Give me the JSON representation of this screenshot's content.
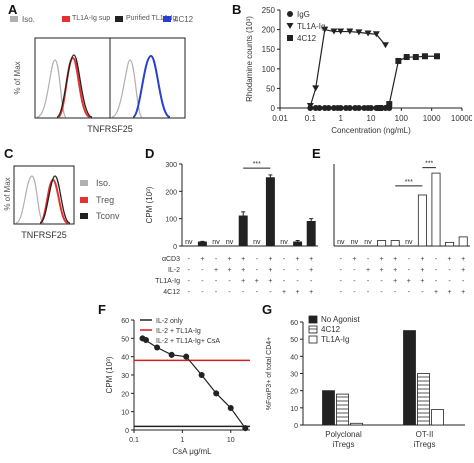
{
  "panels": {
    "A": {
      "label": "A",
      "legend": [
        "Iso.",
        "TL1A-Ig sup",
        "Purified TL1A-Ig",
        "4C12"
      ],
      "ylabel": "% of Max",
      "xlabel": "TNFRSF25",
      "colors": {
        "iso": "#b0b0b0",
        "tl1a_sup": "#e53030",
        "purified": "#222222",
        "c12": "#2a3fcf"
      }
    },
    "B": {
      "label": "B",
      "ylabel": "Rhodamine counts (10³)",
      "xlabel": "Concentration (ng/mL)"
    },
    "C": {
      "label": "C",
      "legend": [
        "Iso.",
        "Treg",
        "Tconv"
      ],
      "ylabel": "% of Max",
      "xlabel": "TNFRSF25",
      "colors": {
        "iso": "#b0b0b0",
        "treg": "#e53030",
        "tconv": "#222222"
      }
    },
    "D": {
      "label": "D",
      "ylabel": "CPM (10³)",
      "nv": "nv",
      "sig": "***",
      "treat_labels": [
        "αCD3",
        "IL-2",
        "TL1A-Ig",
        "4C12"
      ]
    },
    "E": {
      "label": "E",
      "nv": "nv",
      "sig": "***",
      "sig2": "***"
    },
    "F": {
      "label": "F",
      "ylabel": "CPM (10³)",
      "xlabel": "CsA μg/mL"
    },
    "G": {
      "label": "G",
      "ylabel": "%FoxP3+ of total CD4+",
      "groups": [
        "Polyclonal\niTregs",
        "OT-II\niTregs"
      ]
    }
  },
  "chart_data": [
    {
      "panel": "B",
      "type": "scatter",
      "xlabel": "Concentration (ng/mL)",
      "ylabel": "Rhodamine counts (10³)",
      "xlog": true,
      "xlim": [
        0.01,
        10000
      ],
      "ylim": [
        0,
        250
      ],
      "xticks": [
        "0.01",
        "0.1",
        "1",
        "10",
        "100",
        "1000",
        "10000"
      ],
      "yticks": [
        "0",
        "50",
        "100",
        "150",
        "200",
        "250"
      ],
      "series": [
        {
          "name": "IgG",
          "marker": "circle",
          "x": [
            0.1,
            0.15,
            0.2,
            0.3,
            0.4,
            0.6,
            0.8,
            1,
            1.5,
            2,
            3,
            4,
            6,
            8,
            10,
            15,
            20,
            30,
            40
          ],
          "y": [
            0,
            0,
            0,
            0,
            0,
            0,
            0,
            0,
            0,
            0,
            0,
            0,
            0,
            0,
            0,
            0,
            0,
            0,
            0
          ]
        },
        {
          "name": "TL1A-Ig",
          "marker": "triangle",
          "x": [
            0.1,
            0.15,
            0.3,
            0.6,
            1,
            2,
            4,
            8,
            15,
            30
          ],
          "y": [
            5,
            50,
            200,
            195,
            195,
            195,
            193,
            190,
            188,
            160
          ]
        },
        {
          "name": "4C12",
          "marker": "square",
          "x": [
            20,
            40,
            80,
            150,
            300,
            600,
            1500
          ],
          "y": [
            0,
            10,
            120,
            130,
            130,
            132,
            132
          ]
        }
      ]
    },
    {
      "panel": "D",
      "type": "bar",
      "ylabel": "CPM (10³)",
      "ylim": [
        0,
        300
      ],
      "yticks": [
        "0",
        "100",
        "200",
        "300"
      ],
      "values": [
        0,
        15,
        0,
        0,
        110,
        0,
        250,
        0,
        15,
        90
      ],
      "errors": [
        0,
        2,
        0,
        0,
        15,
        0,
        10,
        0,
        5,
        10
      ],
      "nv": [
        true,
        false,
        true,
        true,
        false,
        true,
        false,
        true,
        false,
        false
      ],
      "treatments": {
        "aCD3": [
          "-",
          "+",
          "-",
          "+",
          "+",
          "-",
          "+",
          "-",
          "+",
          "+"
        ],
        "IL-2": [
          "-",
          "-",
          "+",
          "+",
          "+",
          "-",
          "+",
          "-",
          "-",
          "+"
        ],
        "TL1A-Ig": [
          "-",
          "-",
          "-",
          "-",
          "+",
          "+",
          "+",
          "-",
          "-",
          "-"
        ],
        "4C12": [
          "-",
          "-",
          "-",
          "-",
          "-",
          "-",
          "-",
          "+",
          "+",
          "+"
        ]
      }
    },
    {
      "panel": "E",
      "type": "bar",
      "ylim": [
        0,
        45
      ],
      "values": [
        0,
        0,
        0,
        3,
        3,
        0,
        28,
        40,
        2,
        5
      ],
      "nv": [
        true,
        true,
        true,
        false,
        false,
        true,
        false,
        false,
        false,
        false
      ],
      "treatments": {
        "aCD3": [
          "-",
          "+",
          "-",
          "+",
          "+",
          "-",
          "+",
          "-",
          "+",
          "+"
        ],
        "IL-2": [
          "-",
          "-",
          "+",
          "+",
          "+",
          "-",
          "+",
          "-",
          "-",
          "+"
        ],
        "TL1A-Ig": [
          "-",
          "-",
          "-",
          "-",
          "+",
          "+",
          "+",
          "-",
          "-",
          "-"
        ],
        "4C12": [
          "-",
          "-",
          "-",
          "-",
          "-",
          "-",
          "-",
          "+",
          "+",
          "+"
        ]
      }
    },
    {
      "panel": "F",
      "type": "line",
      "xlabel": "CsA μg/mL",
      "ylabel": "CPM (10³)",
      "xlog": true,
      "xlim": [
        0.1,
        25
      ],
      "ylim": [
        0,
        60
      ],
      "xticks": [
        "0.1",
        "1",
        "10"
      ],
      "yticks": [
        "0",
        "10",
        "20",
        "30",
        "40",
        "50",
        "60"
      ],
      "series": [
        {
          "name": "IL-2 only",
          "color": "#222222",
          "y_const": 2
        },
        {
          "name": "IL-2 + TL1A-Ig",
          "color": "#d02020",
          "y_const": 38
        },
        {
          "name": "IL-2 + TL1A-Ig+ CsA",
          "color": "#222222",
          "x": [
            0.15,
            0.3,
            0.6,
            1.2,
            2.5,
            5,
            10,
            20
          ],
          "y": [
            50,
            45,
            41,
            40,
            30,
            20,
            12,
            1
          ]
        }
      ]
    },
    {
      "panel": "G",
      "type": "bar",
      "ylabel": "%FoxP3+ of total CD4+",
      "ylim": [
        0,
        60
      ],
      "yticks": [
        "0",
        "10",
        "20",
        "30",
        "40",
        "50",
        "60"
      ],
      "categories": [
        "Polyclonal iTregs",
        "OT-II iTregs"
      ],
      "series": [
        {
          "name": "No Agonist",
          "fill": "#222222",
          "values": [
            20,
            55
          ]
        },
        {
          "name": "4C12",
          "fill": "hatch",
          "values": [
            18,
            30
          ]
        },
        {
          "name": "TL1A-Ig",
          "fill": "#ffffff",
          "values": [
            1,
            9
          ]
        }
      ]
    }
  ]
}
